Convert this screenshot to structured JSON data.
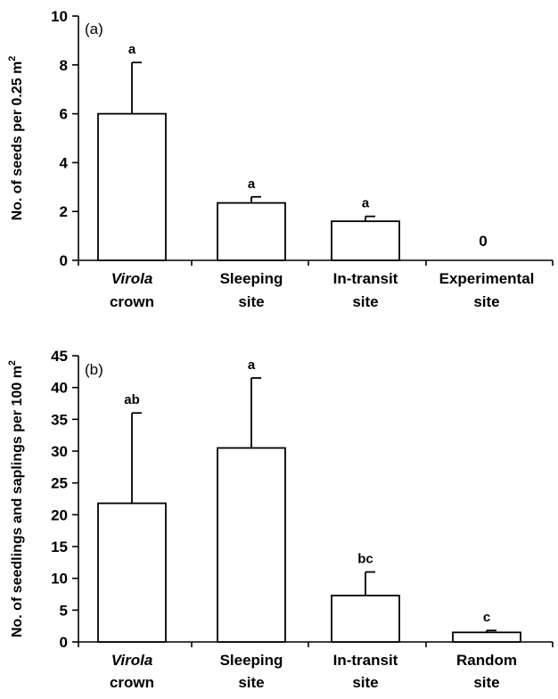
{
  "chart_data": [
    {
      "type": "bar",
      "panel_label": "(a)",
      "ylabel_main": "No. of seeds per 0.25 m",
      "ylabel_sup": "2",
      "ylim": [
        0,
        10
      ],
      "yticks": [
        "0",
        "2",
        "4",
        "6",
        "8",
        "10"
      ],
      "categories": [
        {
          "line1": "Virola",
          "line1_italic": true,
          "line2": "crown"
        },
        {
          "line1": "Sleeping",
          "line1_italic": false,
          "line2": "site"
        },
        {
          "line1": "In-transit",
          "line1_italic": false,
          "line2": "site"
        },
        {
          "line1": "Experimental",
          "line1_italic": false,
          "line2": "site"
        }
      ],
      "values": [
        6.0,
        2.35,
        1.6,
        0
      ],
      "error_upper": [
        8.1,
        2.6,
        1.8,
        null
      ],
      "significance_labels": [
        "a",
        "a",
        "a",
        ""
      ],
      "value_annotations": [
        "",
        "",
        "",
        "0"
      ],
      "grid": false
    },
    {
      "type": "bar",
      "panel_label": "(b)",
      "ylabel_main": "No. of seedlings and saplings per 100 m",
      "ylabel_sup": "2",
      "ylim": [
        0,
        45
      ],
      "yticks": [
        "0",
        "5",
        "10",
        "15",
        "20",
        "25",
        "30",
        "35",
        "40",
        "45"
      ],
      "categories": [
        {
          "line1": "Virola",
          "line1_italic": true,
          "line2": "crown"
        },
        {
          "line1": "Sleeping",
          "line1_italic": false,
          "line2": "site"
        },
        {
          "line1": "In-transit",
          "line1_italic": false,
          "line2": "site"
        },
        {
          "line1": "Random",
          "line1_italic": false,
          "line2": "site"
        }
      ],
      "values": [
        21.8,
        30.5,
        7.3,
        1.5
      ],
      "error_upper": [
        36.0,
        41.5,
        11.0,
        1.8
      ],
      "significance_labels": [
        "ab",
        "a",
        "bc",
        "c"
      ],
      "value_annotations": [
        "",
        "",
        "",
        ""
      ],
      "grid": false
    }
  ]
}
